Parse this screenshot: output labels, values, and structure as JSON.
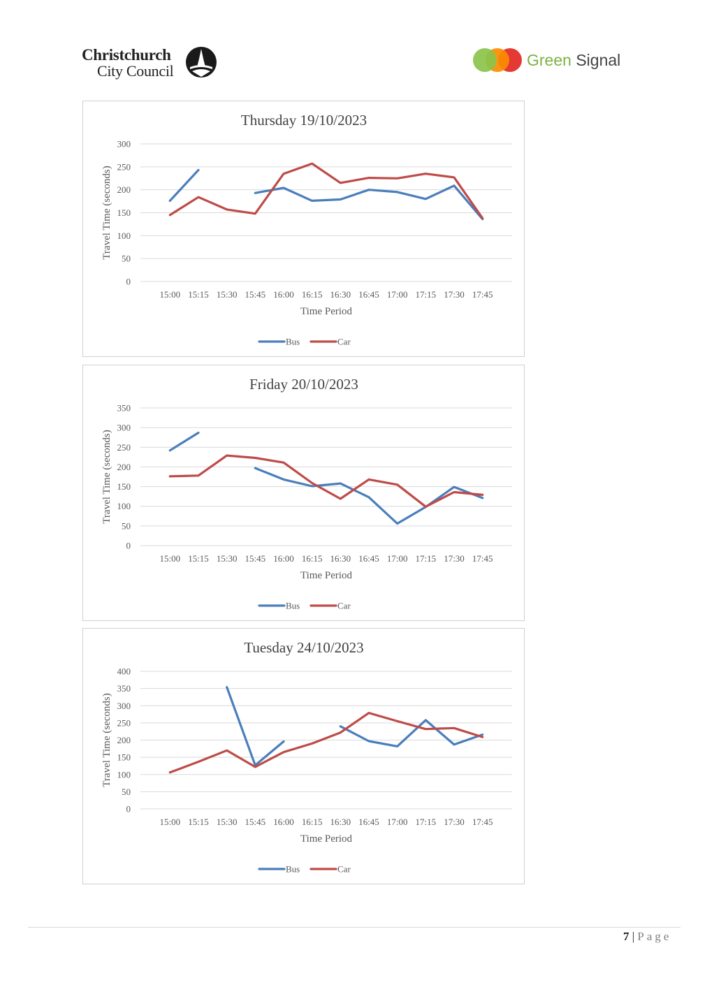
{
  "header": {
    "ccc_logo_line1": "Christchurch",
    "ccc_logo_line2": "City Council",
    "gs_logo_word1": "Green",
    "gs_logo_word2": "Signal"
  },
  "footer": {
    "page_number": "7",
    "separator": "|",
    "page_word": "Page"
  },
  "colors": {
    "bus": "#4a7ebb",
    "car": "#be4b48",
    "grid": "#d9d9d9",
    "text": "#595959"
  },
  "chart_data": [
    {
      "type": "line",
      "title": "Thursday 19/10/2023",
      "xlabel": "Time Period",
      "ylabel": "Travel Time (seconds)",
      "categories": [
        "15:00",
        "15:15",
        "15:30",
        "15:45",
        "16:00",
        "16:15",
        "16:30",
        "16:45",
        "17:00",
        "17:15",
        "17:30",
        "17:45"
      ],
      "ylim": [
        0,
        300
      ],
      "yticks": [
        0,
        50,
        100,
        150,
        200,
        250,
        300
      ],
      "legend": "bottom",
      "series": [
        {
          "name": "Bus",
          "values": [
            176,
            243,
            null,
            193,
            204,
            176,
            179,
            200,
            195,
            180,
            209,
            136
          ]
        },
        {
          "name": "Car",
          "values": [
            145,
            184,
            157,
            148,
            235,
            257,
            215,
            226,
            225,
            235,
            227,
            138
          ]
        }
      ]
    },
    {
      "type": "line",
      "title": "Friday 20/10/2023",
      "xlabel": "Time Period",
      "ylabel": "Travel Time (seconds)",
      "categories": [
        "15:00",
        "15:15",
        "15:30",
        "15:45",
        "16:00",
        "16:15",
        "16:30",
        "16:45",
        "17:00",
        "17:15",
        "17:30",
        "17:45"
      ],
      "ylim": [
        0,
        350
      ],
      "yticks": [
        0,
        50,
        100,
        150,
        200,
        250,
        300,
        350
      ],
      "legend": "bottom",
      "series": [
        {
          "name": "Bus",
          "values": [
            242,
            287,
            null,
            197,
            168,
            151,
            158,
            123,
            56,
            98,
            149,
            121
          ]
        },
        {
          "name": "Car",
          "values": [
            176,
            178,
            229,
            223,
            211,
            159,
            119,
            168,
            155,
            99,
            136,
            129
          ]
        }
      ]
    },
    {
      "type": "line",
      "title": "Tuesday 24/10/2023",
      "xlabel": "Time Period",
      "ylabel": "Travel Time (seconds)",
      "categories": [
        "15:00",
        "15:15",
        "15:30",
        "15:45",
        "16:00",
        "16:15",
        "16:30",
        "16:45",
        "17:00",
        "17:15",
        "17:30",
        "17:45"
      ],
      "ylim": [
        0,
        400
      ],
      "yticks": [
        0,
        50,
        100,
        150,
        200,
        250,
        300,
        350,
        400
      ],
      "legend": "bottom",
      "series": [
        {
          "name": "Bus",
          "values": [
            null,
            null,
            354,
            127,
            196,
            null,
            240,
            197,
            182,
            258,
            187,
            216
          ]
        },
        {
          "name": "Car",
          "values": [
            106,
            137,
            170,
            122,
            165,
            190,
            222,
            279,
            255,
            232,
            235,
            209
          ]
        }
      ]
    }
  ]
}
